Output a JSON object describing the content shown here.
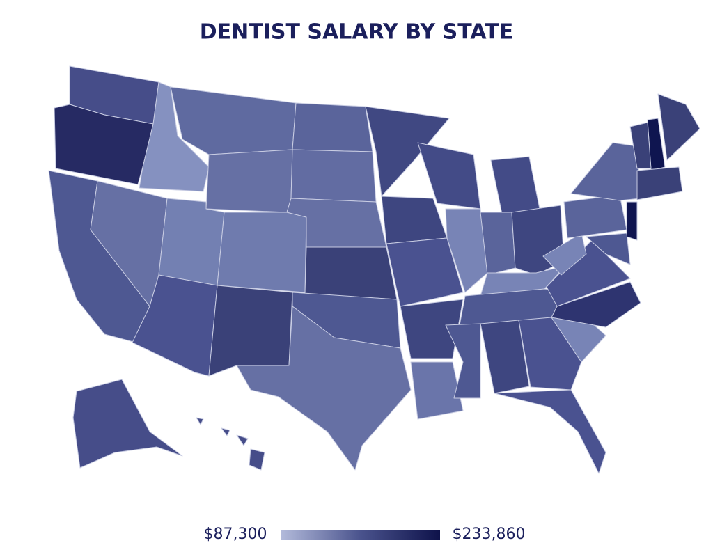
{
  "title": "DENTIST SALARY BY STATE",
  "legend": {
    "min": {
      "value": 87300,
      "label": "$87,300"
    },
    "max": {
      "value": 233860,
      "label": "$233,860"
    }
  }
}
